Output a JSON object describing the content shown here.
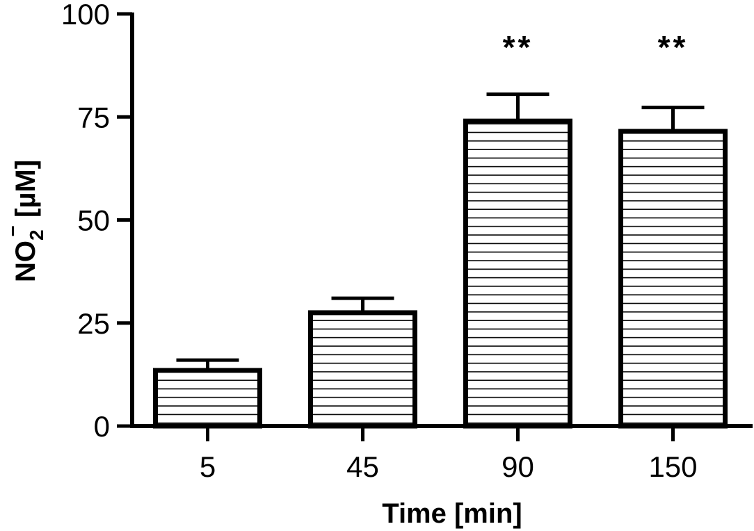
{
  "chart_data": {
    "type": "bar",
    "categories": [
      "5",
      "45",
      "90",
      "150"
    ],
    "values": [
      13.5,
      27.5,
      74,
      71.5
    ],
    "errors": [
      2.5,
      3.5,
      6.5,
      5.8
    ],
    "annotations": [
      "",
      "",
      "**",
      "**"
    ],
    "ylim": [
      0,
      100
    ],
    "yticks": [
      0,
      25,
      50,
      75,
      100
    ],
    "xlabel": "Time [min]",
    "ylabel": {
      "main": "NO",
      "subscript": "2",
      "superscript": "−",
      "unit": " [µM]"
    },
    "grid": false,
    "legend": "none",
    "fill_pattern": "horizontal-lines",
    "colors": {
      "stroke": "#000000",
      "fill": "#ffffff"
    }
  }
}
